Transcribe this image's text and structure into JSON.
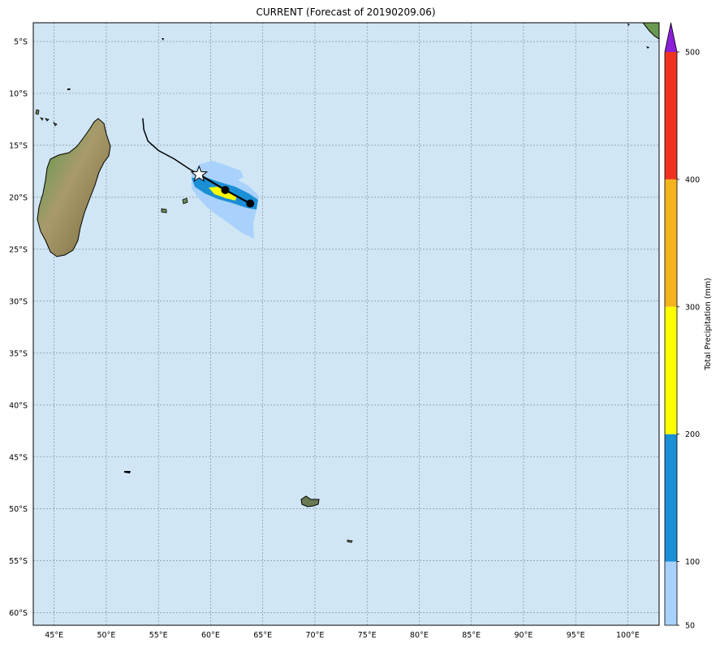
{
  "title": "CURRENT (Forecast of 20190209.06)",
  "colors": {
    "ocean": "#d0e6f5",
    "grid": "#6e7f8a",
    "land_low": "#5b9a4e",
    "land_high": "#a89a6a"
  },
  "map": {
    "lon_range": [
      43,
      103
    ],
    "lat_range": [
      -61.2,
      -3.2
    ],
    "lon_ticks": [
      "45°E",
      "50°E",
      "55°E",
      "60°E",
      "65°E",
      "70°E",
      "75°E",
      "80°E",
      "85°E",
      "90°E",
      "95°E",
      "100°E"
    ],
    "lon_values": [
      45,
      50,
      55,
      60,
      65,
      70,
      75,
      80,
      85,
      90,
      95,
      100
    ],
    "lat_ticks": [
      "5°S",
      "10°S",
      "15°S",
      "20°S",
      "25°S",
      "30°S",
      "35°S",
      "40°S",
      "45°S",
      "50°S",
      "55°S",
      "60°S"
    ],
    "lat_values": [
      -5,
      -10,
      -15,
      -20,
      -25,
      -30,
      -35,
      -40,
      -45,
      -50,
      -55,
      -60
    ],
    "storm_track": [
      [
        53.5,
        -12.4
      ],
      [
        53.6,
        -13.5
      ],
      [
        54.0,
        -14.6
      ],
      [
        55.0,
        -15.5
      ],
      [
        56.5,
        -16.3
      ],
      [
        58.0,
        -17.3
      ],
      [
        58.9,
        -17.8
      ]
    ],
    "current_position": [
      58.9,
      -17.8
    ],
    "forecast_points": [
      [
        61.4,
        -19.3
      ],
      [
        63.8,
        -20.6
      ]
    ],
    "precip_areas": [
      {
        "level": "50-100",
        "color": "#a8d2fb"
      },
      {
        "level": "100-200",
        "color": "#1a8fd6"
      },
      {
        "level": "200-300",
        "color": "#ffff00"
      }
    ]
  },
  "colorbar": {
    "label": "Total Precipitation (mm)",
    "ticks": [
      "50",
      "100",
      "200",
      "300",
      "400",
      "500"
    ],
    "levels": [
      {
        "from": 50,
        "to": 100,
        "color": "#a8d2fb"
      },
      {
        "from": 100,
        "to": 200,
        "color": "#1a8fd6"
      },
      {
        "from": 200,
        "to": 300,
        "color": "#ffff00"
      },
      {
        "from": 300,
        "to": 400,
        "color": "#f5b41e"
      },
      {
        "from": 400,
        "to": 500,
        "color": "#ef3320"
      }
    ],
    "extend_color": "#8b1fd6"
  }
}
